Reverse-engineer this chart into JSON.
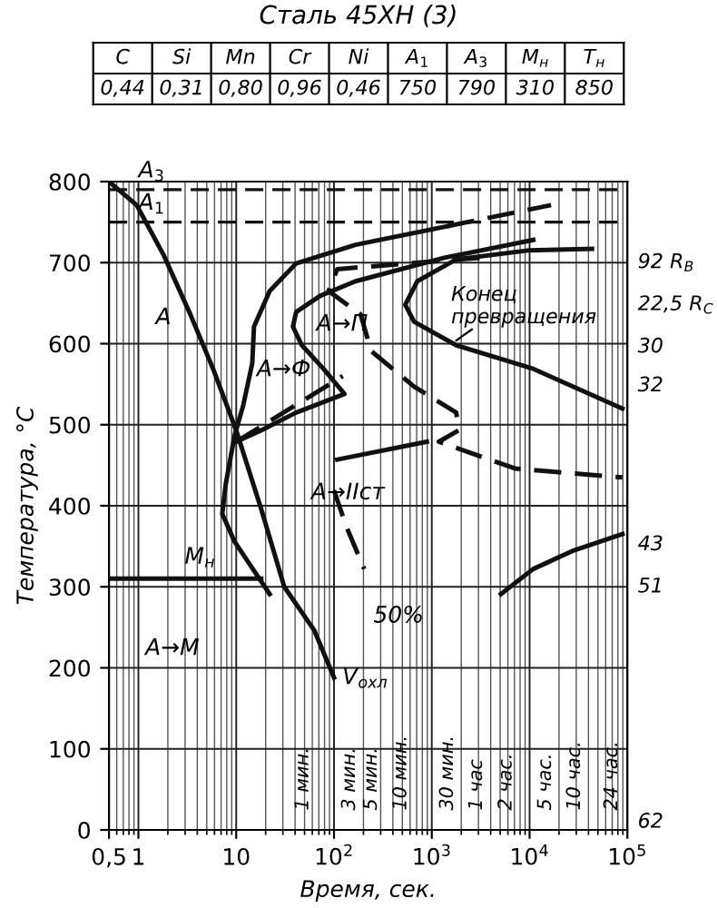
{
  "chart_data": {
    "type": "line",
    "title": "Сталь 45XH (3)",
    "xlabel": "Время, сек.",
    "ylabel": "Температура, °C",
    "log": "x",
    "xlim": [
      0.5,
      100000
    ],
    "ylim": [
      0,
      800
    ],
    "xticks": [
      {
        "value": 0.5,
        "label": "0,5"
      },
      1,
      10,
      {
        "value": 100,
        "label": "10$^{2}$"
      },
      {
        "value": 1000,
        "label": "10$^{3}$"
      },
      {
        "value": 10000,
        "label": "10$^{4}$"
      },
      {
        "value": 100000,
        "label": "10$^{5}$"
      }
    ],
    "yticks": [
      0,
      100,
      200,
      300,
      400,
      500,
      600,
      700,
      800
    ],
    "grid": true,
    "legend": false,
    "marker": "none",
    "ref_lines": [
      {
        "axis": "y",
        "value": 790,
        "label": "A$_{3}$",
        "color": "#111111",
        "line_style": "dashed"
      },
      {
        "axis": "y",
        "value": 750,
        "label": "A$_{1}$",
        "color": "#111111",
        "line_style": "dashed"
      }
    ],
    "series": [
      {
        "color": "#111111",
        "line_style": "solid",
        "x": [
          0.5,
          0.96,
          1.8,
          3.4,
          5.8,
          10,
          18,
          31,
          63,
          100
        ],
        "values": [
          800,
          771,
          710,
          636,
          569,
          493,
          396,
          300,
          246,
          188
        ]
      },
      {
        "color": "#111111",
        "line_style": "solid",
        "x": [
          22,
          9.6,
          7.2,
          7.8,
          9.6,
          11.8,
          14.6,
          15.2,
          22,
          41,
          166,
          1450
        ],
        "values": [
          291,
          356,
          390,
          426,
          486,
          524,
          576,
          621,
          665,
          699,
          722,
          745
        ]
      },
      {
        "color": "#111111",
        "line_style": "dashed",
        "x": [
          1450,
          16600
        ],
        "values": [
          745,
          771
        ]
      },
      {
        "color": "#111111",
        "line_style": "solid",
        "x": [
          10900,
          1340,
          166,
          72,
          41,
          38,
          47,
          78,
          128,
          41,
          18,
          10
        ],
        "values": [
          728,
          706,
          677,
          659,
          639,
          621,
          598,
          569,
          538,
          515,
          493,
          479
        ]
      },
      {
        "color": "#111111",
        "line_style": "dashed",
        "x": [
          10,
          123
        ],
        "values": [
          479,
          560
        ]
      },
      {
        "color": "#111111",
        "line_style": "dashed",
        "x": [
          3090,
          108,
          88,
          187,
          240,
          660,
          1780,
          1880,
          1180,
          7100,
          89000
        ],
        "values": [
          706,
          692,
          665,
          636,
          591,
          547,
          515,
          493,
          479,
          446,
          435
        ]
      },
      {
        "color": "#111111",
        "line_style": "solid",
        "x": [
          43500,
          9600,
          1780,
          710,
          535,
          660,
          1780,
          10900,
          89000
        ],
        "values": [
          717,
          715,
          704,
          677,
          648,
          627,
          598,
          569,
          520
        ]
      },
      {
        "color": "#111111",
        "line_style": "solid",
        "x": [
          108,
          890
        ],
        "values": [
          457,
          479
        ]
      },
      {
        "color": "#111111",
        "line_style": "dashed",
        "x": [
          100,
          134,
          204
        ],
        "values": [
          419,
          374,
          322
        ]
      },
      {
        "color": "#111111",
        "line_style": "solid",
        "x": [
          5100,
          10900,
          28500,
          89000
        ],
        "values": [
          291,
          322,
          345,
          365
        ]
      },
      {
        "name": "M$_{н}$",
        "color": "#111111",
        "line_style": "solid",
        "x": [
          0.5,
          18
        ],
        "values": [
          310,
          310
        ]
      }
    ],
    "annotations": [
      "C",
      "Si",
      "Mn",
      "Cr",
      "Ni",
      "A$_{1}$",
      "A$_{3}$",
      "M$_{н}$",
      "T$_{н}$",
      "0,44",
      "0,31",
      "0,80",
      "0,96",
      "0,46",
      "750",
      "790",
      "310",
      "850",
      "A",
      "A→Ф",
      "A→П",
      "A→IIст",
      "50%",
      "A→M",
      "V$_{охл}$",
      "Конец\nпревращения",
      "92 R$_{B}$",
      "22,5 R$_{C}$",
      "30",
      "32",
      "43",
      "51",
      "62",
      "1 мин.",
      "3 мин.",
      "5 мин.",
      "10 мин.",
      "30 мин.",
      "1 час",
      "2 час.",
      "5 час.",
      "10 час.",
      "24 час."
    ]
  }
}
